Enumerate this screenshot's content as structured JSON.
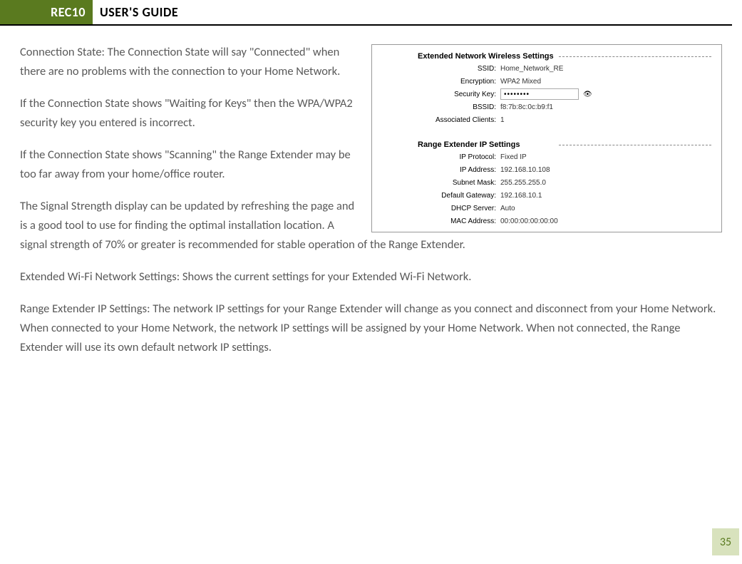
{
  "header": {
    "badge": "REC10",
    "title": "USER'S GUIDE"
  },
  "paragraphs": {
    "p1": "Connection State: The Connection State will say \"Connected\" when there are no problems with the connection to your Home Network.",
    "p2": "If the Connection State shows \"Waiting for Keys\" then the WPA/WPA2 security key you entered is incorrect.",
    "p3": "If the Connection State shows \"Scanning\" the Range Extender may be too far away from your home/office router.",
    "p4": "The Signal Strength display can be updated by refreshing the page and is a good tool to use for finding the optimal installation location. A signal strength of 70% or greater is recommended for stable operation of the Range Extender.",
    "p5": "Extended Wi-Fi Network Settings: Shows the current settings for your Extended Wi-Fi Network.",
    "p6": "Range Extender IP Settings:  The network IP settings for your Range Extender will change as you connect and disconnect from your Home Network. When connected to your Home Network, the network IP settings will be assigned by your Home Network. When not connected, the Range Extender will use its own default network IP settings."
  },
  "figure": {
    "section1": {
      "title": "Extended Network Wireless Settings",
      "rows": {
        "ssid_label": "SSID:",
        "ssid_value": "Home_Network_RE",
        "enc_label": "Encryption:",
        "enc_value": "WPA2 Mixed",
        "key_label": "Security Key:",
        "key_value": "••••••••",
        "bssid_label": "BSSID:",
        "bssid_value": "f8:7b:8c:0c:b9:f1",
        "clients_label": "Associated Clients:",
        "clients_value": "1"
      }
    },
    "section2": {
      "title": "Range Extender IP Settings",
      "rows": {
        "proto_label": "IP Protocol:",
        "proto_value": "Fixed IP",
        "ip_label": "IP Address:",
        "ip_value": "192.168.10.108",
        "mask_label": "Subnet Mask:",
        "mask_value": "255.255.255.0",
        "gw_label": "Default Gateway:",
        "gw_value": "192.168.10.1",
        "dhcp_label": "DHCP Server:",
        "dhcp_value": "Auto",
        "mac_label": "MAC Address:",
        "mac_value": "00:00:00:00:00:00"
      }
    }
  },
  "page_number": "35",
  "colors": {
    "brand_green": "#5a7a1f",
    "page_badge_bg": "#d8e2bd",
    "body_text": "#595959"
  }
}
